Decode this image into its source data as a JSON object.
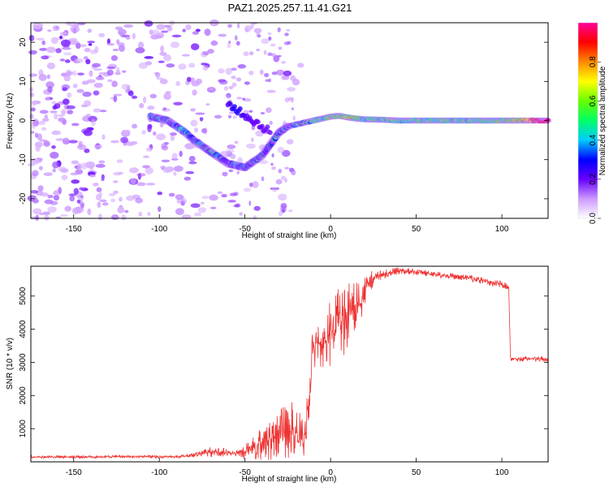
{
  "title": "PAZ1.2025.257.11.41.G21",
  "chart_data": [
    {
      "type": "heatmap",
      "xlabel": "Height of straight line (km)",
      "ylabel": "Frequency (Hz)",
      "xlim": [
        -175,
        127
      ],
      "ylim": [
        -25,
        25
      ],
      "xticks": [
        -150,
        -100,
        -50,
        0,
        50,
        100
      ],
      "yticks": [
        -20,
        -10,
        0,
        10,
        20
      ],
      "colorbar": {
        "label": "Normalized spectral amplitude",
        "range": [
          0.0,
          1.0
        ],
        "ticks": [
          0.0,
          0.2,
          0.4,
          0.6,
          0.8
        ],
        "tick_labels": [
          "0.0",
          "0.2",
          "0.4",
          "0.6",
          "0.8"
        ],
        "colors": [
          "#ffffff",
          "#cc99ff",
          "#6600ff",
          "#0000ff",
          "#00ccff",
          "#00ff66",
          "#66ff00",
          "#ffff00",
          "#ff8800",
          "#ff0000",
          "#ff0099"
        ]
      },
      "ridge": {
        "x": [
          -105,
          -100,
          -95,
          -90,
          -85,
          -80,
          -75,
          -70,
          -65,
          -60,
          -55,
          -50,
          -45,
          -40,
          -35,
          -30,
          -25,
          -20,
          -15,
          -10,
          -5,
          0,
          5,
          10,
          15,
          20,
          30,
          40,
          50,
          60,
          70,
          80,
          90,
          100,
          110,
          120,
          127
        ],
        "y": [
          1.0,
          0.5,
          0.0,
          -1.5,
          -3.0,
          -5.0,
          -6.5,
          -8.0,
          -9.5,
          -11.0,
          -11.5,
          -12.0,
          -10.5,
          -9.0,
          -6.0,
          -3.0,
          -1.5,
          -1.0,
          -0.5,
          0.0,
          0.5,
          1.0,
          1.2,
          0.8,
          0.5,
          0.3,
          0.2,
          0.0,
          0.0,
          0.0,
          0.0,
          0.0,
          0.0,
          0.0,
          0.0,
          0.0,
          0.0
        ],
        "amplitude": [
          0.25,
          0.3,
          0.3,
          0.32,
          0.35,
          0.3,
          0.3,
          0.28,
          0.28,
          0.25,
          0.3,
          0.28,
          0.25,
          0.25,
          0.22,
          0.2,
          0.22,
          0.28,
          0.35,
          0.4,
          0.45,
          0.5,
          0.55,
          0.6,
          0.5,
          0.45,
          0.45,
          0.45,
          0.45,
          0.45,
          0.45,
          0.45,
          0.5,
          0.5,
          0.6,
          0.9,
          0.95
        ]
      },
      "secondary_ridge": {
        "x": [
          -60,
          -55,
          -50,
          -45,
          -40,
          -35
        ],
        "y": [
          4.0,
          3.0,
          1.5,
          0.0,
          -1.5,
          -3.0
        ],
        "amplitude": [
          0.22,
          0.28,
          0.22,
          0.2,
          0.2,
          0.18
        ]
      }
    },
    {
      "type": "line",
      "xlabel": "Height of straight line (km)",
      "ylabel": "SNR (10 * v/v)",
      "xlim": [
        -175,
        127
      ],
      "ylim": [
        0,
        5900
      ],
      "xticks": [
        -150,
        -100,
        -50,
        0,
        50,
        100
      ],
      "yticks": [
        1000,
        2000,
        3000,
        4000,
        5000
      ],
      "color": "#ee3333",
      "series": [
        {
          "x": [
            -175,
            -160,
            -140,
            -120,
            -100,
            -90,
            -80,
            -75,
            -70,
            -65,
            -60,
            -55,
            -50,
            -45,
            -40,
            -35,
            -30,
            -25,
            -22,
            -20,
            -18,
            -15,
            -12,
            -10,
            -8,
            -5,
            -2,
            0,
            2,
            5,
            8,
            10,
            12,
            15,
            18,
            20,
            22,
            25,
            30,
            35,
            40,
            45,
            50,
            55,
            60,
            65,
            70,
            75,
            80,
            85,
            90,
            95,
            100,
            103,
            104,
            105,
            106,
            110,
            115,
            120,
            127
          ],
          "y": [
            150,
            150,
            150,
            160,
            150,
            150,
            200,
            260,
            300,
            300,
            250,
            250,
            300,
            420,
            600,
            700,
            850,
            900,
            950,
            900,
            800,
            600,
            2400,
            3500,
            3600,
            3500,
            3700,
            3900,
            4000,
            4300,
            4200,
            4500,
            4700,
            4700,
            5000,
            5200,
            5400,
            5550,
            5650,
            5700,
            5750,
            5750,
            5720,
            5700,
            5650,
            5620,
            5600,
            5580,
            5550,
            5500,
            5450,
            5400,
            5350,
            5300,
            5280,
            3150,
            3120,
            3100,
            3100,
            3100,
            3100
          ],
          "noise": [
            40,
            40,
            40,
            40,
            40,
            40,
            60,
            100,
            150,
            150,
            120,
            120,
            200,
            400,
            550,
            650,
            750,
            800,
            900,
            900,
            800,
            500,
            800,
            700,
            700,
            800,
            900,
            1000,
            1000,
            1000,
            1000,
            1000,
            900,
            800,
            700,
            500,
            400,
            250,
            150,
            120,
            120,
            100,
            100,
            100,
            100,
            100,
            100,
            100,
            100,
            100,
            100,
            100,
            100,
            100,
            100,
            80,
            80,
            80,
            80,
            80,
            80
          ]
        }
      ]
    }
  ]
}
